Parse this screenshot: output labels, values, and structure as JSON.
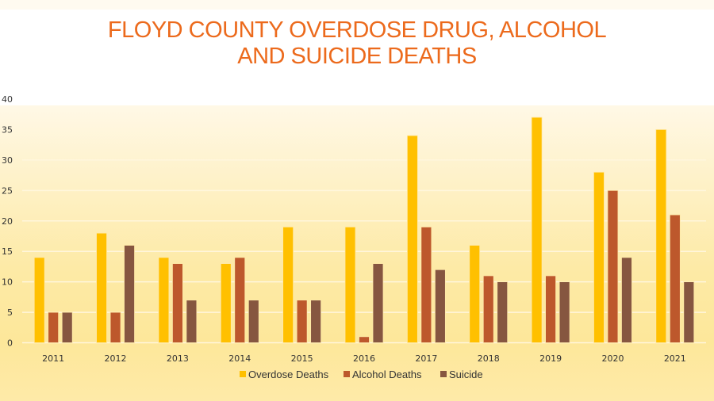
{
  "chart_data": {
    "type": "bar",
    "title": [
      "FLOYD COUNTY OVERDOSE DRUG, ALCOHOL",
      "AND SUICIDE DEATHS"
    ],
    "xlabel": "",
    "ylabel": "",
    "ylim": [
      0,
      40
    ],
    "yticks": [
      0,
      5,
      10,
      15,
      20,
      25,
      30,
      35,
      40
    ],
    "grid": true,
    "legend_position": "bottom",
    "categories": [
      "2011",
      "2012",
      "2013",
      "2014",
      "2015",
      "2016",
      "2017",
      "2018",
      "2019",
      "2020",
      "2021"
    ],
    "series": [
      {
        "name": "Overdose Deaths",
        "color": "#ffc000",
        "values": [
          14,
          18,
          14,
          13,
          19,
          19,
          34,
          16,
          37,
          28,
          35
        ]
      },
      {
        "name": "Alcohol Deaths",
        "color": "#bd582c",
        "values": [
          5,
          5,
          13,
          14,
          7,
          1,
          19,
          11,
          11,
          25,
          21
        ]
      },
      {
        "name": "Suicide",
        "color": "#865640",
        "values": [
          5,
          16,
          7,
          7,
          7,
          13,
          12,
          10,
          10,
          14,
          10
        ]
      }
    ]
  }
}
